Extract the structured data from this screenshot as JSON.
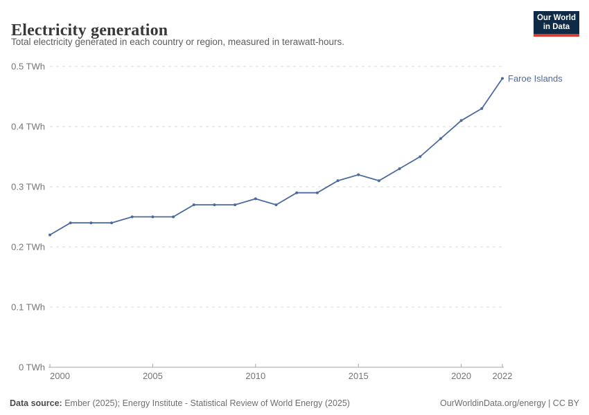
{
  "header": {
    "title": "Electricity generation",
    "subtitle": "Total electricity generated in each country or region, measured in terawatt-hours.",
    "logo": {
      "line1": "Our World",
      "line2": "in Data"
    }
  },
  "chart_data": {
    "type": "line",
    "title": "Electricity generation",
    "unit": "TWh",
    "xlim": [
      2000,
      2022
    ],
    "ylim": [
      0,
      0.5
    ],
    "grid": "horizontal-dashed",
    "legend_position": "end-of-line-label",
    "colors": {
      "line": "#4c6a9c",
      "gridline": "#dadada",
      "axis": "#a6a6a6",
      "tick_label": "#757575"
    },
    "x": [
      2000,
      2001,
      2002,
      2003,
      2004,
      2005,
      2006,
      2007,
      2008,
      2009,
      2010,
      2011,
      2012,
      2013,
      2014,
      2015,
      2016,
      2017,
      2018,
      2019,
      2020,
      2021,
      2022
    ],
    "series": [
      {
        "name": "Faroe Islands",
        "color": "#4c6a9c",
        "values": [
          0.22,
          0.24,
          0.24,
          0.24,
          0.25,
          0.25,
          0.25,
          0.27,
          0.27,
          0.27,
          0.28,
          0.27,
          0.29,
          0.29,
          0.31,
          0.32,
          0.31,
          0.33,
          0.35,
          0.38,
          0.41,
          0.43,
          0.48
        ]
      }
    ],
    "x_ticks": [
      {
        "year": 2000,
        "label": "2000"
      },
      {
        "year": 2005,
        "label": "2005"
      },
      {
        "year": 2010,
        "label": "2010"
      },
      {
        "year": 2015,
        "label": "2015"
      },
      {
        "year": 2020,
        "label": "2020"
      },
      {
        "year": 2022,
        "label": "2022"
      }
    ],
    "y_ticks": [
      {
        "value": 0,
        "label": "0 TWh"
      },
      {
        "value": 0.1,
        "label": "0.1 TWh"
      },
      {
        "value": 0.2,
        "label": "0.2 TWh"
      },
      {
        "value": 0.3,
        "label": "0.3 TWh"
      },
      {
        "value": 0.4,
        "label": "0.4 TWh"
      },
      {
        "value": 0.5,
        "label": "0.5 TWh"
      }
    ]
  },
  "footer": {
    "source_label": "Data source:",
    "source_text": "Ember (2025); Energy Institute - Statistical Review of World Energy (2025)",
    "link": "OurWorldinData.org/energy | CC BY"
  }
}
